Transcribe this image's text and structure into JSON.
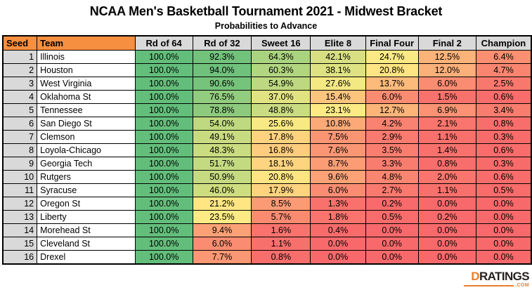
{
  "title": "NCAA Men's Basketball Tournament 2021 - Midwest Bracket",
  "subtitle": "Probabilities to Advance",
  "chart_data": {
    "type": "heatmap",
    "title": "NCAA Men's Basketball Tournament 2021 - Midwest Bracket",
    "subtitle": "Probabilities to Advance",
    "columns": [
      "Seed",
      "Team",
      "Rd of 64",
      "Rd of 32",
      "Sweet 16",
      "Elite 8",
      "Final Four",
      "Final 2",
      "Champion"
    ],
    "value_unit": "percent",
    "rows": [
      {
        "seed": "1",
        "team": "Illinois",
        "values": [
          "100.0%",
          "92.3%",
          "64.3%",
          "42.1%",
          "24.7%",
          "12.5%",
          "6.4%"
        ]
      },
      {
        "seed": "2",
        "team": "Houston",
        "values": [
          "100.0%",
          "94.0%",
          "60.3%",
          "38.1%",
          "20.8%",
          "12.0%",
          "4.7%"
        ]
      },
      {
        "seed": "3",
        "team": "West Virginia",
        "values": [
          "100.0%",
          "90.6%",
          "54.9%",
          "27.6%",
          "13.7%",
          "6.0%",
          "2.5%"
        ]
      },
      {
        "seed": "4",
        "team": "Oklahoma St",
        "values": [
          "100.0%",
          "76.5%",
          "37.0%",
          "15.4%",
          "6.0%",
          "1.5%",
          "0.6%"
        ]
      },
      {
        "seed": "5",
        "team": "Tennessee",
        "values": [
          "100.0%",
          "78.8%",
          "48.8%",
          "23.1%",
          "12.7%",
          "6.9%",
          "3.4%"
        ]
      },
      {
        "seed": "6",
        "team": "San Diego St",
        "values": [
          "100.0%",
          "54.0%",
          "25.6%",
          "10.8%",
          "4.2%",
          "2.1%",
          "0.8%"
        ]
      },
      {
        "seed": "7",
        "team": "Clemson",
        "values": [
          "100.0%",
          "49.1%",
          "17.8%",
          "7.5%",
          "2.9%",
          "1.1%",
          "0.3%"
        ]
      },
      {
        "seed": "8",
        "team": "Loyola-Chicago",
        "values": [
          "100.0%",
          "48.3%",
          "16.8%",
          "7.6%",
          "3.5%",
          "1.4%",
          "0.6%"
        ]
      },
      {
        "seed": "9",
        "team": "Georgia Tech",
        "values": [
          "100.0%",
          "51.7%",
          "18.1%",
          "8.7%",
          "3.3%",
          "0.8%",
          "0.3%"
        ]
      },
      {
        "seed": "10",
        "team": "Rutgers",
        "values": [
          "100.0%",
          "50.9%",
          "20.8%",
          "9.6%",
          "4.8%",
          "2.0%",
          "0.6%"
        ]
      },
      {
        "seed": "11",
        "team": "Syracuse",
        "values": [
          "100.0%",
          "46.0%",
          "17.9%",
          "6.0%",
          "2.7%",
          "1.1%",
          "0.5%"
        ]
      },
      {
        "seed": "12",
        "team": "Oregon St",
        "values": [
          "100.0%",
          "21.2%",
          "8.5%",
          "1.3%",
          "0.2%",
          "0.0%",
          "0.0%"
        ]
      },
      {
        "seed": "13",
        "team": "Liberty",
        "values": [
          "100.0%",
          "23.5%",
          "5.7%",
          "1.8%",
          "0.5%",
          "0.2%",
          "0.0%"
        ]
      },
      {
        "seed": "14",
        "team": "Morehead St",
        "values": [
          "100.0%",
          "9.4%",
          "1.6%",
          "0.4%",
          "0.0%",
          "0.0%",
          "0.0%"
        ]
      },
      {
        "seed": "15",
        "team": "Cleveland St",
        "values": [
          "100.0%",
          "6.0%",
          "1.1%",
          "0.0%",
          "0.0%",
          "0.0%",
          "0.0%"
        ]
      },
      {
        "seed": "16",
        "team": "Drexel",
        "values": [
          "100.0%",
          "7.7%",
          "0.8%",
          "0.0%",
          "0.0%",
          "0.0%",
          "0.0%"
        ]
      }
    ],
    "color_scale": {
      "min": {
        "value": 0,
        "color": "#F8696B"
      },
      "mid": {
        "value": 22,
        "color": "#FFEB84"
      },
      "max": {
        "value": 100,
        "color": "#63BE7B"
      }
    },
    "layout_hints": {
      "grid": true,
      "legend": false,
      "value_range": [
        0,
        100
      ]
    }
  },
  "palette": {
    "header_orange": "#F78F40",
    "header_gray": "#D9D9D9",
    "seed_gray": "#D9D9D9",
    "border": "#000000",
    "logo_orange": "#E87E2B",
    "logo_dark": "#26221E"
  },
  "logo": {
    "prefix": "D",
    "rest": "RATINGS",
    "tld": ".COM"
  }
}
